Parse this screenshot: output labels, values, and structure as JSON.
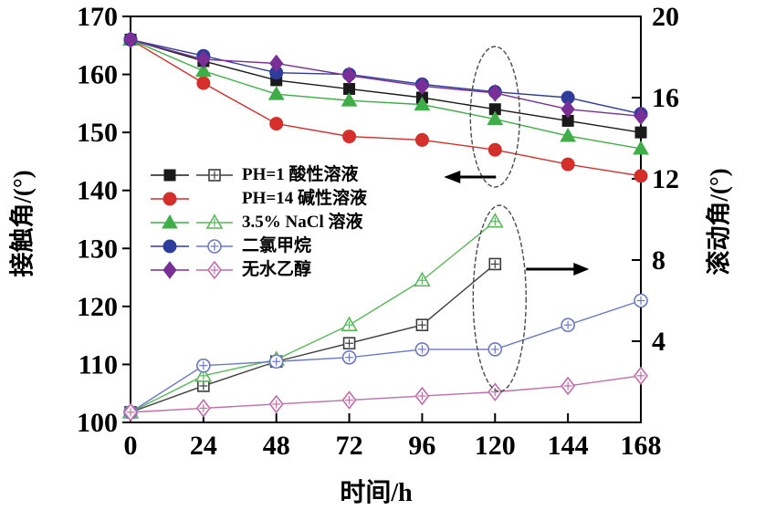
{
  "chart_data": {
    "type": "line",
    "xlabel": "时间/h",
    "ylabel_left": "接触角/(°)",
    "ylabel_right": "滚动角/(°)",
    "x_axis": {
      "min": 0,
      "max": 168,
      "ticks": [
        0,
        24,
        48,
        72,
        96,
        120,
        144,
        168
      ]
    },
    "left_axis": {
      "min": 100,
      "max": 170,
      "ticks": [
        170,
        160,
        150,
        140,
        130,
        120,
        110,
        100
      ]
    },
    "right_axis": {
      "min": 0,
      "max": 20,
      "ticks": [
        20,
        16,
        12,
        8,
        4
      ]
    },
    "x": [
      0,
      24,
      48,
      72,
      96,
      120,
      144,
      168
    ],
    "series": [
      {
        "id": "ph1-contact",
        "name": "PH=1 酸性溶液 接触角",
        "axis": "left",
        "color": "#1a1a1a",
        "marker": "square",
        "open": false,
        "values": [
          166,
          162.3,
          159,
          157.5,
          156,
          154,
          152,
          150
        ]
      },
      {
        "id": "ph14-contact",
        "name": "PH=14 碱性溶液 接触角",
        "axis": "left",
        "color": "#d42f2a",
        "marker": "circle",
        "open": false,
        "values": [
          166,
          158.5,
          151.5,
          149.3,
          148.7,
          147,
          144.5,
          142.5
        ]
      },
      {
        "id": "nacl-contact",
        "name": "3.5% NaCl 溶液 接触角",
        "axis": "left",
        "color": "#3fae49",
        "marker": "triangle",
        "open": false,
        "values": [
          166,
          160.6,
          156.6,
          155.5,
          154.8,
          152.3,
          149.4,
          147.2
        ]
      },
      {
        "id": "dcm-contact",
        "name": "二氯甲烷 接触角",
        "axis": "left",
        "color": "#2e3d9b",
        "marker": "circle",
        "open": false,
        "values": [
          166,
          163.2,
          160.3,
          160,
          158.3,
          157,
          156,
          153.2
        ]
      },
      {
        "id": "ethanol-contact",
        "name": "无水乙醇 接触角",
        "axis": "left",
        "color": "#7a2f96",
        "marker": "diamond",
        "open": false,
        "values": [
          166,
          162.6,
          161.9,
          159.8,
          158,
          156.8,
          154,
          152.8
        ]
      },
      {
        "id": "ph1-rolling",
        "name": "PH=1 酸性溶液 滚动角",
        "axis": "right",
        "color": "#3d3d3d",
        "marker": "square",
        "open": true,
        "values": [
          0.5,
          1.8,
          3.0,
          3.9,
          4.8,
          7.8,
          null,
          null
        ]
      },
      {
        "id": "nacl-rolling",
        "name": "3.5% NaCl 溶液 滚动角",
        "axis": "right",
        "color": "#5cb85c",
        "marker": "triangle",
        "open": true,
        "values": [
          0.5,
          2.3,
          3.1,
          4.8,
          7.0,
          9.9,
          null,
          null
        ]
      },
      {
        "id": "dcm-rolling",
        "name": "二氯甲烷 滚动角",
        "axis": "right",
        "color": "#6b78c8",
        "marker": "circle",
        "open": true,
        "values": [
          0.5,
          2.8,
          3.0,
          3.2,
          3.6,
          3.6,
          4.8,
          6.0
        ]
      },
      {
        "id": "ethanol-rolling",
        "name": "无水乙醇 滚动角",
        "axis": "right",
        "color": "#c06daa",
        "marker": "diamond",
        "open": true,
        "values": [
          0.5,
          0.7,
          0.9,
          1.1,
          1.3,
          1.5,
          1.8,
          2.3
        ]
      }
    ],
    "legend": [
      {
        "label": "PH=1 酸性溶液",
        "marker": "square",
        "filled_color": "#1a1a1a",
        "open_color": "#3d3d3d",
        "has_open": true
      },
      {
        "label": "PH=14 碱性溶液",
        "marker": "circle",
        "filled_color": "#d42f2a",
        "open_color": null,
        "has_open": false
      },
      {
        "label": "3.5% NaCl 溶液",
        "marker": "triangle",
        "filled_color": "#3fae49",
        "open_color": "#5cb85c",
        "has_open": true
      },
      {
        "label": "二氯甲烷",
        "marker": "circle",
        "filled_color": "#2e3d9b",
        "open_color": "#6b78c8",
        "has_open": true
      },
      {
        "label": "无水乙醇",
        "marker": "diamond",
        "filled_color": "#7a2f96",
        "open_color": "#c06daa",
        "has_open": true
      }
    ],
    "annotations": {
      "ellipse_group_time": 120,
      "arrow_left_meaning": "contact-angle group reads left axis",
      "arrow_right_meaning": "rolling-angle group reads right axis"
    }
  }
}
